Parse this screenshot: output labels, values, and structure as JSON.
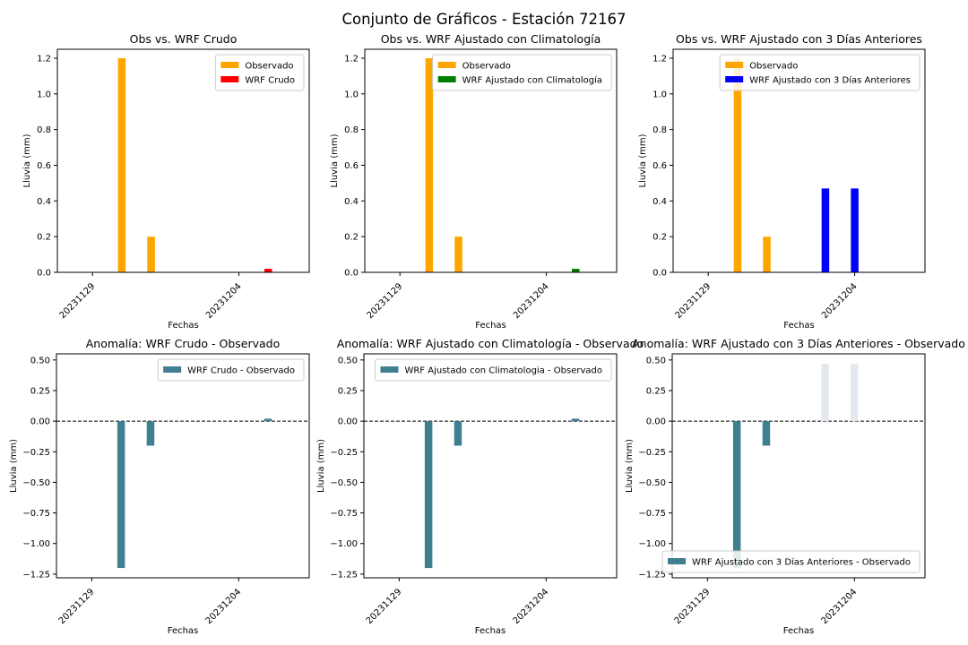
{
  "figure_title": "Conjunto de Gráficos - Estación 72167",
  "colors": {
    "observado": "#ffa500",
    "wrf_crudo": "#ff0000",
    "wrf_clima": "#008000",
    "wrf_3dias": "#0000ff",
    "anomalia": "#3f7f8f",
    "anomalia_faint": "#e3e9ee"
  },
  "chart_data": [
    {
      "type": "bar",
      "title": "Obs vs. WRF Crudo",
      "xlabel": "Fechas",
      "ylabel": "Lluvia (mm)",
      "x_ticks": [
        "20231129",
        "20231204"
      ],
      "ylim": [
        0,
        1.25
      ],
      "y_ticks": [
        "0.0",
        "0.2",
        "0.4",
        "0.6",
        "0.8",
        "1.0",
        "1.2"
      ],
      "legend": "top-right",
      "series": [
        {
          "name": "Observado",
          "color": "#ffa500",
          "points": [
            {
              "x": "2023-11-30",
              "y": 1.2
            },
            {
              "x": "2023-12-01",
              "y": 0.2
            }
          ]
        },
        {
          "name": "WRF Crudo",
          "color": "#ff0000",
          "points": [
            {
              "x": "2023-12-05",
              "y": 0.02
            }
          ]
        }
      ]
    },
    {
      "type": "bar",
      "title": "Obs vs. WRF Ajustado con Climatología",
      "xlabel": "Fechas",
      "ylabel": "Lluvia (mm)",
      "x_ticks": [
        "20231129",
        "20231204"
      ],
      "ylim": [
        0,
        1.25
      ],
      "y_ticks": [
        "0.0",
        "0.2",
        "0.4",
        "0.6",
        "0.8",
        "1.0",
        "1.2"
      ],
      "legend": "top-right",
      "series": [
        {
          "name": "Observado",
          "color": "#ffa500",
          "points": [
            {
              "x": "2023-11-30",
              "y": 1.2
            },
            {
              "x": "2023-12-01",
              "y": 0.2
            }
          ]
        },
        {
          "name": "WRF Ajustado con Climatología",
          "color": "#008000",
          "points": [
            {
              "x": "2023-12-05",
              "y": 0.02
            }
          ]
        }
      ]
    },
    {
      "type": "bar",
      "title": "Obs vs. WRF Ajustado con 3 Días Anteriores",
      "xlabel": "Fechas",
      "ylabel": "Lluvia (mm)",
      "x_ticks": [
        "20231129",
        "20231204"
      ],
      "ylim": [
        0,
        1.25
      ],
      "y_ticks": [
        "0.0",
        "0.2",
        "0.4",
        "0.6",
        "0.8",
        "1.0",
        "1.2"
      ],
      "legend": "top-right",
      "series": [
        {
          "name": "Observado",
          "color": "#ffa500",
          "points": [
            {
              "x": "2023-11-30",
              "y": 1.2
            },
            {
              "x": "2023-12-01",
              "y": 0.2
            }
          ]
        },
        {
          "name": "WRF Ajustado con 3 Días Anteriores",
          "color": "#0000ff",
          "points": [
            {
              "x": "2023-12-03",
              "y": 0.47
            },
            {
              "x": "2023-12-04",
              "y": 0.47
            }
          ]
        }
      ]
    },
    {
      "type": "bar",
      "title": "Anomalía: WRF Crudo - Observado",
      "xlabel": "Fechas",
      "ylabel": "Lluvia (mm)",
      "x_ticks": [
        "20231129",
        "20231204"
      ],
      "ylim": [
        -1.28,
        0.55
      ],
      "y_ticks": [
        "−1.25",
        "−1.00",
        "−0.75",
        "−0.50",
        "−0.25",
        "0.00",
        "0.25",
        "0.50"
      ],
      "zero_line": "dashed",
      "legend": "top-right",
      "series": [
        {
          "name": "WRF Crudo - Observado",
          "color": "#3f7f8f",
          "points": [
            {
              "x": "2023-11-30",
              "y": -1.2
            },
            {
              "x": "2023-12-01",
              "y": -0.2
            },
            {
              "x": "2023-12-05",
              "y": 0.02
            }
          ]
        }
      ]
    },
    {
      "type": "bar",
      "title": "Anomalía: WRF Ajustado con Climatología - Observado",
      "xlabel": "Fechas",
      "ylabel": "Lluvia (mm)",
      "x_ticks": [
        "20231129",
        "20231204"
      ],
      "ylim": [
        -1.28,
        0.55
      ],
      "y_ticks": [
        "−1.25",
        "−1.00",
        "−0.75",
        "−0.50",
        "−0.25",
        "0.00",
        "0.25",
        "0.50"
      ],
      "zero_line": "dashed",
      "legend": "top-right",
      "series": [
        {
          "name": "WRF Ajustado con Climatologia - Observado",
          "color": "#3f7f8f",
          "points": [
            {
              "x": "2023-11-30",
              "y": -1.2
            },
            {
              "x": "2023-12-01",
              "y": -0.2
            },
            {
              "x": "2023-12-05",
              "y": 0.02
            }
          ]
        }
      ]
    },
    {
      "type": "bar",
      "title": "Anomalía: WRF Ajustado con 3 Días Anteriores - Observado",
      "xlabel": "Fechas",
      "ylabel": "Lluvia (mm)",
      "x_ticks": [
        "20231129",
        "20231204"
      ],
      "ylim": [
        -1.28,
        0.55
      ],
      "y_ticks": [
        "−1.25",
        "−1.00",
        "−0.75",
        "−0.50",
        "−0.25",
        "0.00",
        "0.25",
        "0.50"
      ],
      "zero_line": "dashed",
      "legend": "bottom-right",
      "series": [
        {
          "name": "WRF Ajustado con 3 Días Anteriores - Observado",
          "color": "#3f7f8f",
          "points": [
            {
              "x": "2023-11-30",
              "y": -1.2
            },
            {
              "x": "2023-12-01",
              "y": -0.2
            },
            {
              "x": "2023-12-03",
              "y": 0.47,
              "faint": true
            },
            {
              "x": "2023-12-04",
              "y": 0.47,
              "faint": true
            }
          ]
        }
      ]
    }
  ]
}
